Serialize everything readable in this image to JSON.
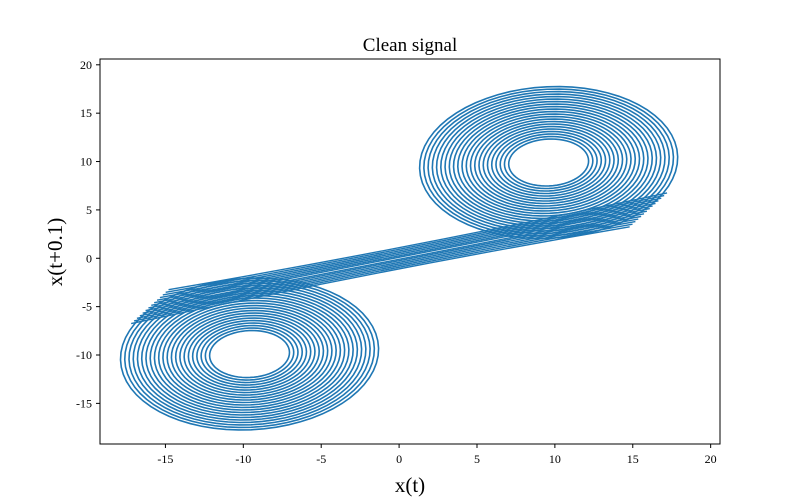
{
  "chart_data": {
    "type": "line",
    "title": "Clean signal",
    "xlabel": "x(t)",
    "ylabel": "x(t+0.1)",
    "xlim": [
      -19.2,
      20.6
    ],
    "ylim": [
      -19.2,
      20.6
    ],
    "xticks": [
      -15,
      -10,
      -5,
      0,
      5,
      10,
      15,
      20
    ],
    "yticks": [
      -15,
      -10,
      -5,
      0,
      5,
      10,
      15,
      20
    ],
    "grid": false,
    "line_color": "#1f77b4",
    "series": [
      {
        "lobes": [
          {
            "center": [
              9.6,
              9.9
            ],
            "rx_range": [
              2.6,
              8.4
            ],
            "ry_range": [
              2.6,
              8.4
            ],
            "rotation_deg": 25,
            "loops": 22
          },
          {
            "center": [
              -9.6,
              -9.9
            ],
            "rx_range": [
              2.6,
              8.4
            ],
            "ry_range": [
              2.6,
              8.4
            ],
            "rotation_deg": 25,
            "loops": 22
          }
        ],
        "bridges": [
          {
            "from": [
              16.0,
              5.0
            ],
            "to": [
              -16.0,
              -5.0
            ],
            "via": [
              0,
              0
            ],
            "count": 14
          }
        ]
      }
    ]
  }
}
